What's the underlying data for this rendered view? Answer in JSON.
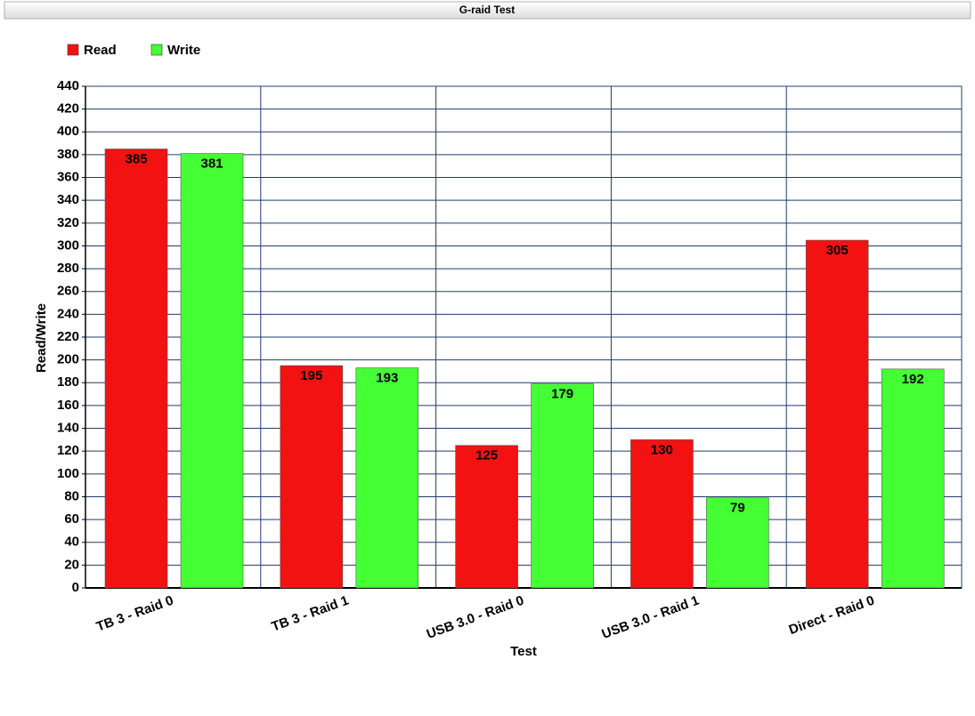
{
  "chart_data": {
    "type": "bar",
    "title": "G-raid Test",
    "x_label": "Test",
    "y_label": "Read/Write",
    "categories": [
      "TB 3 - Raid 0",
      "TB 3 - Raid 1",
      "USB 3.0 - Raid 0",
      "USB 3.0 - Raid 1",
      "Direct - Raid 0"
    ],
    "series": [
      {
        "name": "Read",
        "color": "#f21212",
        "values": [
          385,
          195,
          125,
          130,
          305
        ]
      },
      {
        "name": "Write",
        "color": "#44ff33",
        "values": [
          381,
          193,
          179,
          79,
          192
        ]
      }
    ],
    "ylim": [
      0,
      440
    ],
    "yticks": [
      0,
      20,
      40,
      60,
      80,
      100,
      120,
      140,
      160,
      180,
      200,
      220,
      240,
      260,
      280,
      300,
      320,
      340,
      360,
      380,
      400,
      420,
      440
    ],
    "grid": true,
    "legend": "top-left",
    "data_labels": true
  }
}
